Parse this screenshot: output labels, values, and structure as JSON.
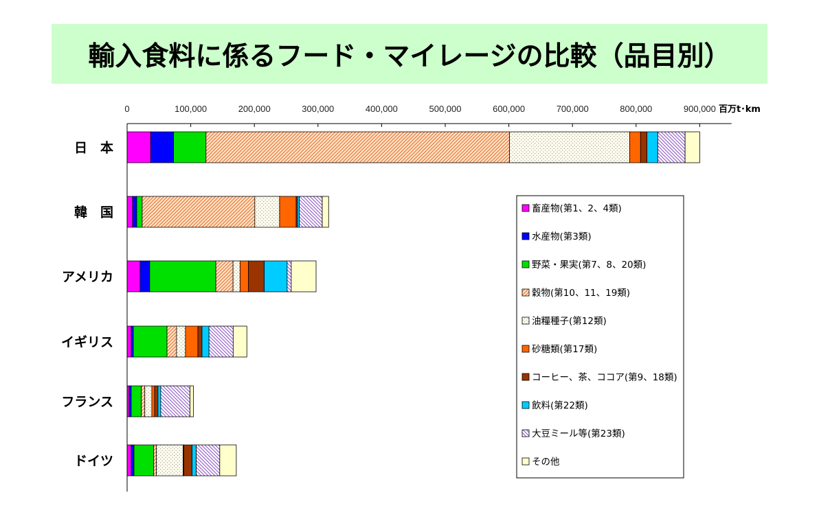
{
  "colors": {
    "title_banner": "#ccffcc",
    "axis": "#000000",
    "bar_outline": "#000000"
  },
  "chart_data": {
    "type": "bar",
    "orientation": "horizontal",
    "stacked": true,
    "title": "輸入食料に係るフード・マイレージの比較（品目別）",
    "x_unit": "百万t･km",
    "x_axis_position": "top",
    "xlim": [
      0,
      950000
    ],
    "xticks": [
      "0",
      "100,000",
      "200,000",
      "300,000",
      "400,000",
      "500,000",
      "600,000",
      "700,000",
      "800,000",
      "900,000"
    ],
    "grid": false,
    "legend_position": "lower-right",
    "categories": [
      "日　本",
      "韓　国",
      "アメリカ",
      "イギリス",
      "フランス",
      "ドイツ"
    ],
    "series": [
      {
        "name": "畜産物(第1、2、4類)",
        "color": "#ff00ff",
        "pattern": "solid",
        "values": [
          37000,
          8600,
          20500,
          6500,
          3200,
          6500
        ]
      },
      {
        "name": "水産物(第3類)",
        "color": "#0000ff",
        "pattern": "solid",
        "values": [
          36000,
          6500,
          15000,
          3200,
          3200,
          4300
        ]
      },
      {
        "name": "野菜・果実(第7、8、20類)",
        "color": "#00e000",
        "pattern": "solid",
        "values": [
          51000,
          8600,
          104000,
          53000,
          16000,
          31000
        ]
      },
      {
        "name": "穀物(第10、11、19類)",
        "color": "#e87a3c",
        "background": "#ffe4c8",
        "pattern": "diagonal-stripes",
        "values": [
          477000,
          177000,
          27000,
          15000,
          5400,
          4300
        ]
      },
      {
        "name": "油糧種子(第12類)",
        "color": "#8a8a70",
        "background": "#fffdf0",
        "pattern": "dots",
        "values": [
          189000,
          39000,
          11000,
          14000,
          11000,
          42000
        ]
      },
      {
        "name": "砂糖類(第17類)",
        "color": "#ff6600",
        "pattern": "solid",
        "values": [
          17000,
          26000,
          13000,
          19500,
          4300,
          1000
        ]
      },
      {
        "name": "コーヒー、茶、ココア(第9、18類)",
        "color": "#993300",
        "pattern": "solid",
        "values": [
          10000,
          2000,
          25000,
          6500,
          5400,
          13000
        ]
      },
      {
        "name": "飲料(第22類)",
        "color": "#00ccff",
        "pattern": "solid",
        "values": [
          17000,
          3000,
          36000,
          11000,
          4300,
          6500
        ]
      },
      {
        "name": "大豆ミール等(第23類)",
        "color": "#9966cc",
        "background": "#ffffff",
        "pattern": "reverse-diagonal-stripes",
        "values": [
          43000,
          36000,
          6500,
          38000,
          46000,
          37000
        ]
      },
      {
        "name": "その他",
        "color": "#ffffcc",
        "pattern": "solid",
        "values": [
          23000,
          10000,
          39000,
          21500,
          5400,
          26000
        ]
      }
    ]
  }
}
